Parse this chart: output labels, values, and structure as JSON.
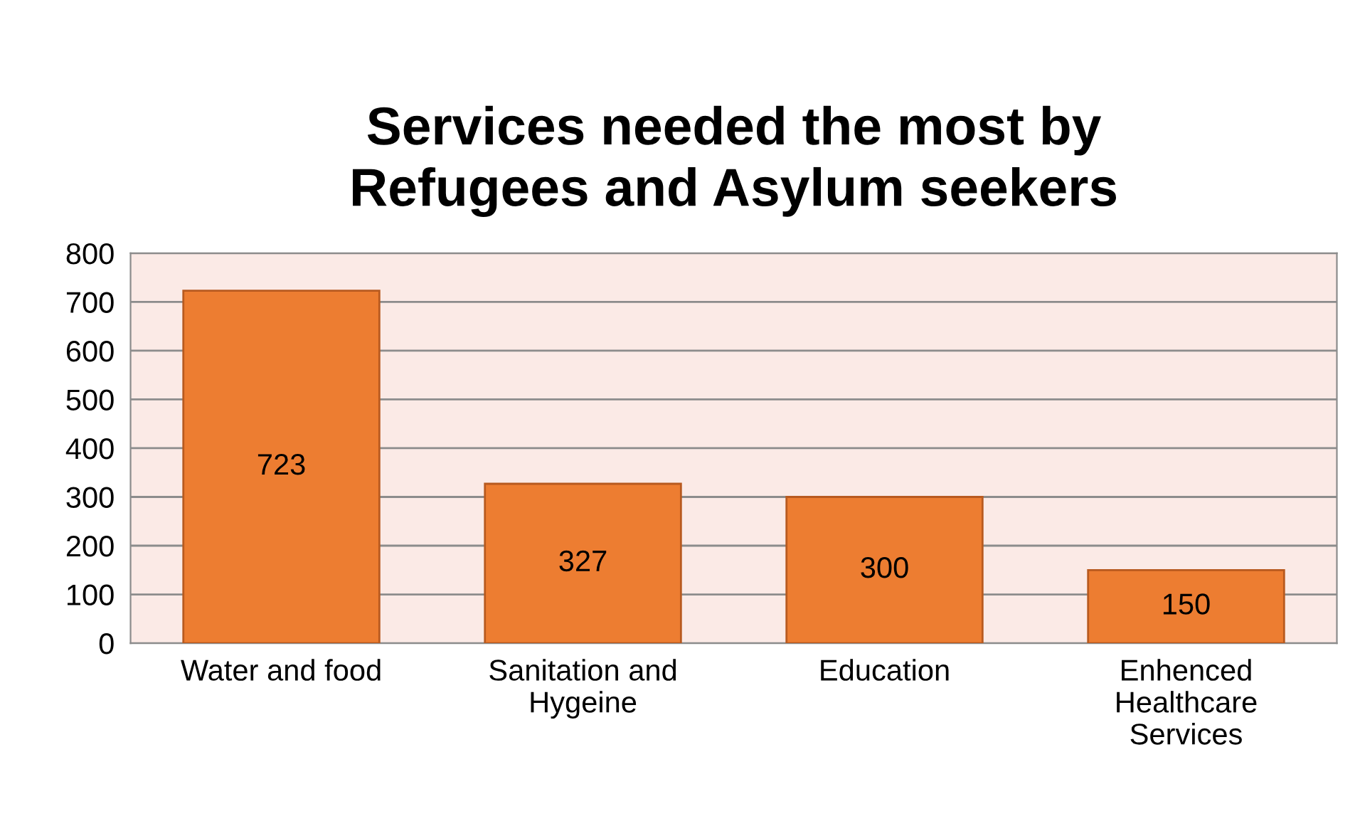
{
  "chart_data": {
    "type": "bar",
    "title": "Services needed the most by\nRefugees and Asylum seekers",
    "categories": [
      "Water and food",
      "Sanitation and\nHygeine",
      "Education",
      "Enhenced\nHealthcare\nServices"
    ],
    "values": [
      723,
      327,
      300,
      150
    ],
    "color": "#ed7d31",
    "ylim": [
      0,
      800
    ],
    "yticks": [
      0,
      100,
      200,
      300,
      400,
      500,
      600,
      700,
      800
    ],
    "grid": "y",
    "data_labels": true
  }
}
